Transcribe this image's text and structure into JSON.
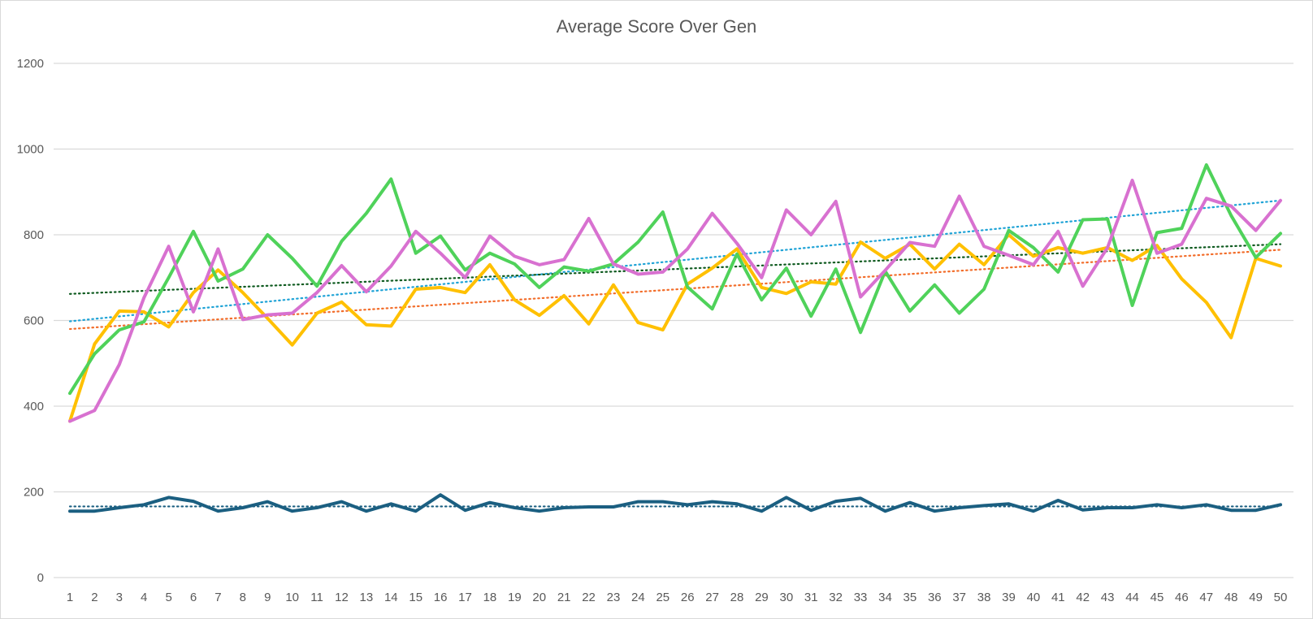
{
  "chart_data": {
    "type": "line",
    "title": "Average Score Over Gen",
    "xlabel": "",
    "ylabel": "",
    "ylim": [
      0,
      1200
    ],
    "yticks": [
      0,
      200,
      400,
      600,
      800,
      1000,
      1200
    ],
    "x": [
      1,
      2,
      3,
      4,
      5,
      6,
      7,
      8,
      9,
      10,
      11,
      12,
      13,
      14,
      15,
      16,
      17,
      18,
      19,
      20,
      21,
      22,
      23,
      24,
      25,
      26,
      27,
      28,
      29,
      30,
      31,
      32,
      33,
      34,
      35,
      36,
      37,
      38,
      39,
      40,
      41,
      42,
      43,
      44,
      45,
      46,
      47,
      48,
      49,
      50
    ],
    "grid": true,
    "legend": "none",
    "series": [
      {
        "color": "#ffc000",
        "values": [
          365,
          545,
          622,
          620,
          585,
          665,
          718,
          665,
          605,
          543,
          617,
          643,
          590,
          587,
          673,
          677,
          665,
          730,
          648,
          612,
          658,
          592,
          683,
          595,
          578,
          685,
          722,
          767,
          677,
          663,
          690,
          685,
          783,
          745,
          778,
          720,
          778,
          730,
          800,
          750,
          770,
          757,
          770,
          740,
          775,
          697,
          642,
          560,
          745,
          727
        ]
      },
      {
        "color": "#4fd25a",
        "values": [
          430,
          522,
          578,
          597,
          700,
          808,
          692,
          720,
          800,
          745,
          680,
          785,
          850,
          930,
          757,
          797,
          718,
          757,
          732,
          677,
          725,
          715,
          732,
          783,
          853,
          678,
          627,
          755,
          648,
          722,
          610,
          720,
          572,
          715,
          622,
          683,
          617,
          673,
          810,
          770,
          713,
          835,
          837,
          635,
          805,
          815,
          963,
          845,
          747,
          803
        ]
      },
      {
        "color": "#d871d0",
        "values": [
          365,
          390,
          497,
          653,
          773,
          620,
          767,
          602,
          613,
          617,
          665,
          728,
          667,
          727,
          808,
          757,
          700,
          797,
          750,
          730,
          742,
          838,
          732,
          708,
          713,
          767,
          850,
          780,
          700,
          858,
          800,
          878,
          655,
          717,
          782,
          773,
          890,
          773,
          752,
          730,
          808,
          680,
          770,
          927,
          757,
          778,
          885,
          867,
          810,
          880
        ]
      },
      {
        "color": "#1b5f81",
        "values": [
          155,
          155,
          163,
          170,
          187,
          178,
          155,
          163,
          177,
          155,
          163,
          177,
          155,
          172,
          155,
          193,
          157,
          175,
          163,
          155,
          163,
          165,
          165,
          177,
          177,
          170,
          177,
          172,
          155,
          187,
          157,
          178,
          185,
          155,
          175,
          155,
          163,
          168,
          172,
          155,
          180,
          158,
          163,
          163,
          170,
          163,
          170,
          157,
          157,
          170
        ]
      }
    ],
    "trendlines": [
      {
        "color": "#1fa3d6",
        "values": [
          598,
          880
        ]
      },
      {
        "color": "#f26d2a",
        "values": [
          580,
          765
        ]
      },
      {
        "color": "#0e5a1f",
        "values": [
          662,
          778
        ]
      },
      {
        "color": "#1b5f81",
        "values": [
          166,
          166
        ]
      }
    ]
  }
}
